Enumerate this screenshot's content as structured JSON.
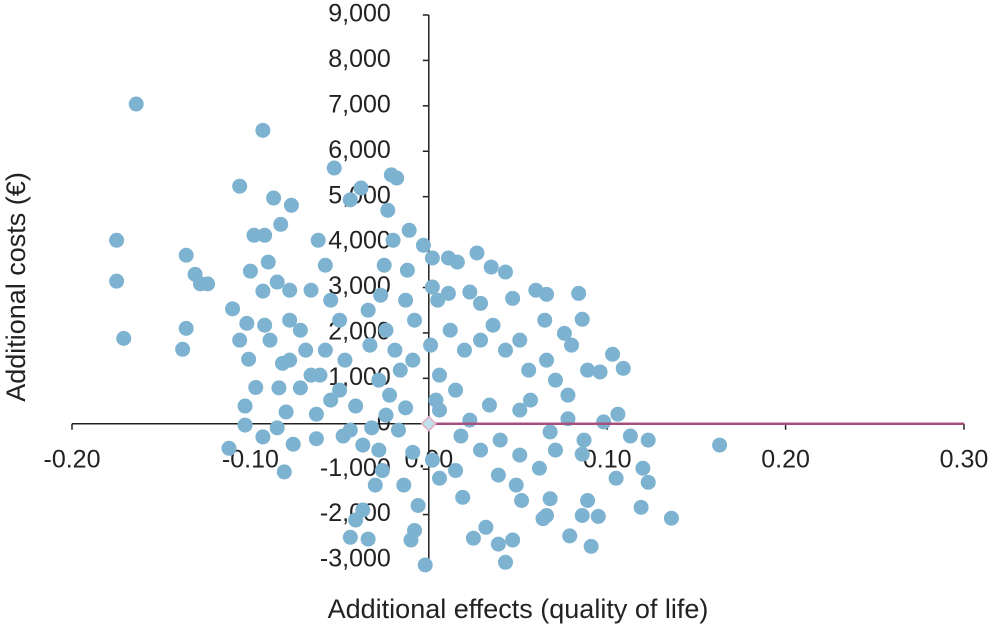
{
  "chart_data": {
    "type": "scatter",
    "x_label": "Additional effects (quality of life)",
    "y_label": "Additional costs (€)",
    "xlim": [
      -0.2,
      0.3
    ],
    "ylim": [
      -3000,
      9000
    ],
    "xticks": [
      {
        "value": -0.2,
        "label": "-0.20"
      },
      {
        "value": -0.1,
        "label": "-0.10"
      },
      {
        "value": 0,
        "label": "0.00"
      },
      {
        "value": 0.1,
        "label": "0.10"
      },
      {
        "value": 0.2,
        "label": "0.20"
      },
      {
        "value": 0.3,
        "label": "0.30"
      }
    ],
    "yticks": [
      {
        "value": -3000,
        "label": "-3,000"
      },
      {
        "value": -2000,
        "label": "-2,000"
      },
      {
        "value": -1000,
        "label": "-1,000"
      },
      0,
      {
        "value": 1000,
        "label": "1,000"
      },
      {
        "value": 2000,
        "label": "2,000"
      },
      {
        "value": 3000,
        "label": "3,000"
      },
      {
        "value": 4000,
        "label": "4,000"
      },
      {
        "value": 5000,
        "label": "5,000"
      },
      {
        "value": 6000,
        "label": "6,000"
      },
      {
        "value": 7000,
        "label": "7,000"
      },
      {
        "value": 8000,
        "label": "8,000"
      },
      {
        "value": 9000,
        "label": "9,000"
      }
    ],
    "reference_line": {
      "x": [
        0,
        0.3
      ],
      "y": [
        0,
        0
      ],
      "color": "#a5507d"
    },
    "series": [
      {
        "color": "#7db3d0",
        "x": [
          -0.164,
          -0.093,
          -0.175,
          -0.175,
          -0.171,
          -0.138,
          -0.136,
          -0.136,
          -0.131,
          -0.128,
          -0.124,
          -0.11,
          -0.106,
          -0.102,
          -0.106,
          -0.101,
          -0.098,
          -0.092,
          -0.087,
          -0.077,
          -0.083,
          -0.09,
          -0.085,
          -0.093,
          -0.1,
          -0.078,
          -0.092,
          -0.089,
          -0.078,
          -0.072,
          -0.082,
          -0.097,
          -0.103,
          -0.103,
          -0.112,
          -0.093,
          -0.085,
          -0.084,
          -0.072,
          -0.08,
          -0.076,
          -0.081,
          -0.063,
          -0.063,
          -0.053,
          -0.044,
          -0.038,
          -0.062,
          -0.058,
          -0.055,
          -0.066,
          -0.05,
          -0.058,
          -0.069,
          -0.047,
          -0.061,
          -0.05,
          -0.041,
          -0.048,
          -0.037,
          -0.028,
          -0.041,
          -0.044,
          -0.034,
          -0.037,
          -0.03,
          -0.026,
          -0.021,
          -0.018,
          -0.023,
          -0.02,
          -0.025,
          -0.027,
          -0.034,
          -0.024,
          -0.033,
          -0.019,
          -0.016,
          -0.028,
          -0.022,
          -0.013,
          -0.011,
          -0.012,
          -0.013,
          -0.008,
          -0.009,
          -0.017,
          -0.014,
          -0.009,
          -0.006,
          -0.008,
          -0.01,
          -0.002,
          -0.003,
          0.002,
          0.002,
          0.005,
          0.011,
          0.016,
          0.027,
          0.035,
          0.043,
          0.023,
          0.011,
          0.029,
          0.036,
          0.047,
          0.06,
          0.066,
          0.084,
          0.065,
          0.076,
          0.086,
          0.08,
          0.066,
          0.056,
          0.071,
          0.078,
          0.089,
          0.096,
          0.103,
          0.109,
          0.106,
          0.098,
          0.087,
          0.086,
          0.078,
          0.068,
          0.071,
          0.062,
          0.051,
          0.04,
          0.039,
          0.049,
          0.052,
          0.068,
          0.066,
          0.064,
          0.079,
          0.089,
          0.086,
          0.091,
          0.095,
          0.113,
          0.123,
          0.12,
          0.123,
          0.105,
          0.119,
          0.136,
          0.163,
          0.032,
          0.025,
          0.039,
          0.047,
          0.043,
          0.015,
          0.019,
          0.006,
          0.002,
          0.023,
          0.034,
          0.051,
          0.057,
          0.015,
          0.006,
          0.02,
          0.012,
          0.029,
          0.043,
          0.051,
          0.001,
          0.006,
          0.018,
          0.029,
          0.004,
          -0.024,
          -0.032,
          -0.044,
          -0.055,
          -0.066,
          -0.078
        ],
        "values": [
          7040,
          6460,
          4040,
          3140,
          1880,
          1640,
          2100,
          3710,
          3290,
          3080,
          3080,
          2530,
          5230,
          2210,
          1840,
          1420,
          4150,
          4150,
          4970,
          4810,
          4390,
          3560,
          3120,
          2920,
          3360,
          2940,
          2170,
          1840,
          2280,
          2060,
          1330,
          800,
          390,
          -30,
          -540,
          -290,
          -90,
          790,
          790,
          260,
          -450,
          -1060,
          -330,
          210,
          5630,
          4930,
          5190,
          4040,
          3490,
          2720,
          2940,
          2280,
          1620,
          1620,
          1400,
          1070,
          740,
          390,
          -270,
          -470,
          -580,
          -2120,
          -2500,
          -2540,
          -1900,
          -1350,
          -1030,
          5480,
          5410,
          4700,
          4040,
          3490,
          2830,
          2500,
          2060,
          1730,
          1620,
          1180,
          960,
          630,
          350,
          4260,
          3380,
          2720,
          2280,
          1400,
          -140,
          -1350,
          -630,
          -1800,
          -2350,
          -2560,
          -3110,
          3930,
          3650,
          3010,
          2720,
          3650,
          3560,
          3760,
          3450,
          3340,
          2900,
          2870,
          2650,
          2170,
          2760,
          2940,
          2850,
          2870,
          2280,
          1990,
          2300,
          1730,
          1400,
          1180,
          960,
          630,
          1180,
          1140,
          1530,
          1220,
          210,
          40,
          -360,
          -670,
          110,
          -180,
          -580,
          -980,
          -690,
          -360,
          -1130,
          -1350,
          -1690,
          -1650,
          -2020,
          -2090,
          -2470,
          -1690,
          -2020,
          -2700,
          -2040,
          -270,
          -360,
          -980,
          -1290,
          -1200,
          -1840,
          -2080,
          -470,
          -2280,
          -2520,
          -2650,
          -2560,
          -3050,
          -1030,
          -1620,
          -1200,
          -800,
          80,
          410,
          300,
          520,
          740,
          1070,
          1620,
          2060,
          1840,
          1620,
          1840,
          1730,
          300,
          -270,
          -580,
          520,
          190,
          -90,
          -140,
          520,
          1070,
          1400
        ]
      }
    ]
  }
}
